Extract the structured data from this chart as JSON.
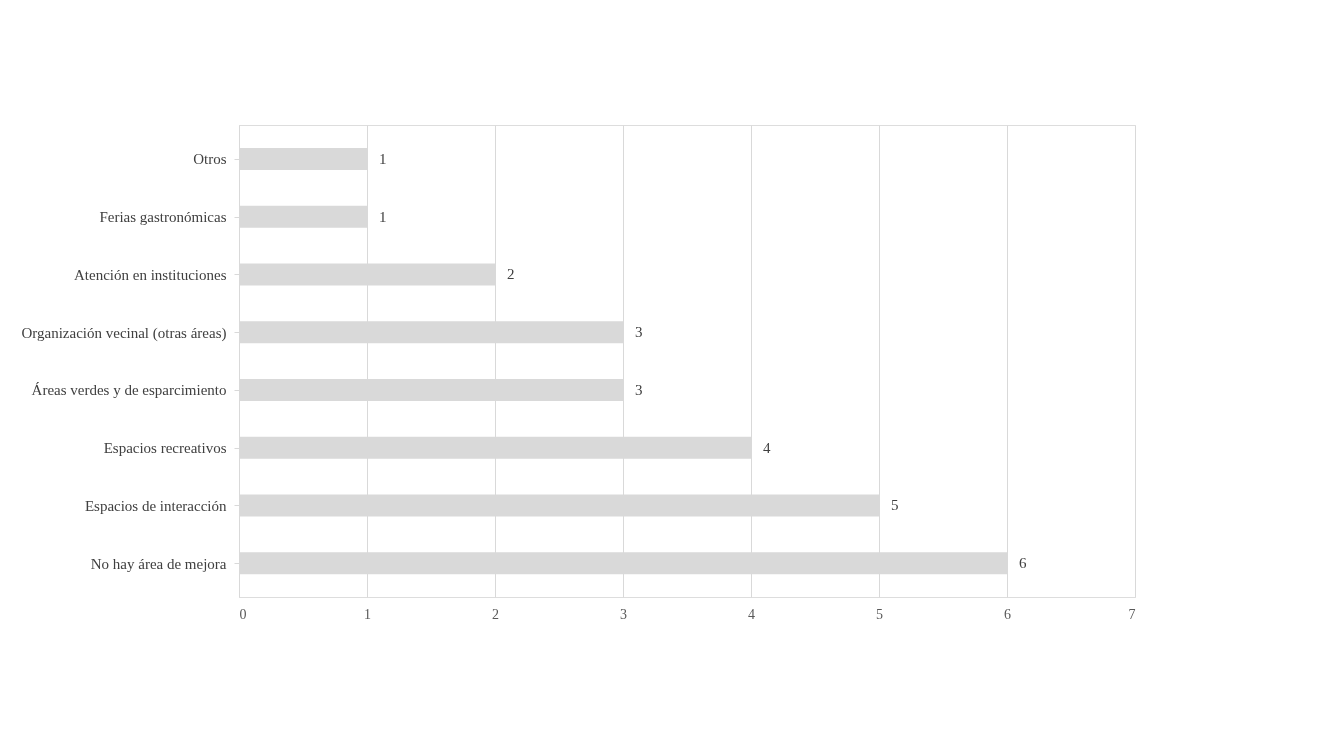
{
  "chart_data": {
    "type": "bar",
    "orientation": "horizontal",
    "categories": [
      "Otros",
      "Ferias gastronómicas",
      "Atención en instituciones",
      "Organización vecinal (otras áreas)",
      "Áreas verdes y de esparcimiento",
      "Espacios recreativos",
      "Espacios de interacción",
      "No hay área de mejora"
    ],
    "values": [
      1,
      1,
      2,
      3,
      3,
      4,
      5,
      6
    ],
    "color": "#d9d9d9",
    "xlim": [
      0,
      7
    ],
    "xticks": [
      0,
      1,
      2,
      3,
      4,
      5,
      6,
      7
    ],
    "grid": "x",
    "data_labels": true
  }
}
